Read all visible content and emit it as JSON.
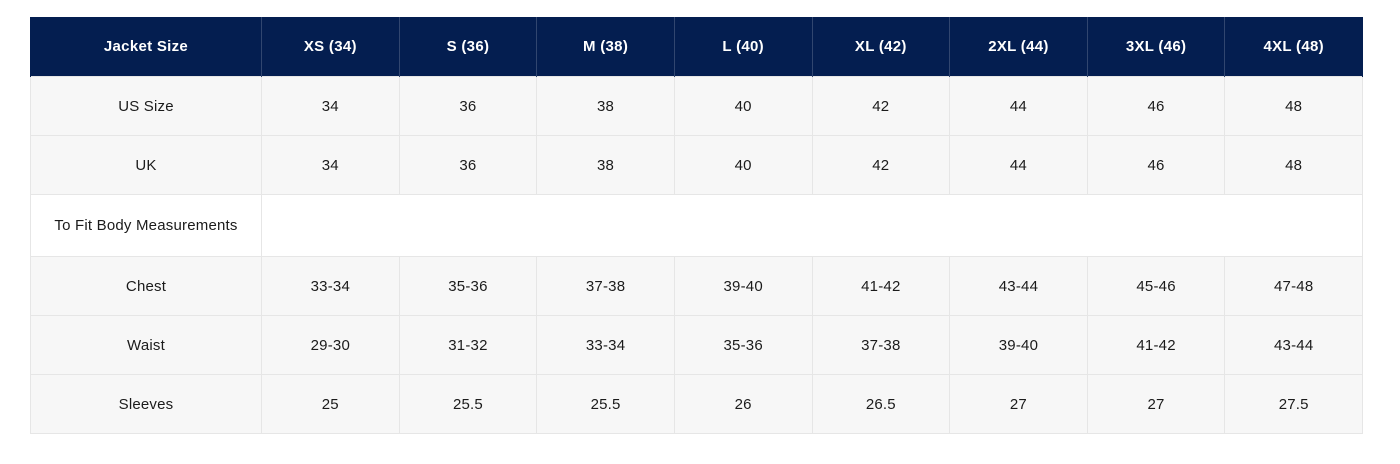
{
  "chart_data": {
    "type": "table",
    "columns": [
      "Jacket Size",
      "XS (34)",
      "S (36)",
      "M (38)",
      "L (40)",
      "XL (42)",
      "2XL (44)",
      "3XL (46)",
      "4XL (48)"
    ],
    "rows": [
      {
        "label": "US Size",
        "kind": "data",
        "values": [
          "34",
          "36",
          "38",
          "40",
          "42",
          "44",
          "46",
          "48"
        ]
      },
      {
        "label": "UK",
        "kind": "data",
        "values": [
          "34",
          "36",
          "38",
          "40",
          "42",
          "44",
          "46",
          "48"
        ]
      },
      {
        "label": "To Fit Body Measurements",
        "kind": "section",
        "values": []
      },
      {
        "label": "Chest",
        "kind": "data",
        "values": [
          "33-34",
          "35-36",
          "37-38",
          "39-40",
          "41-42",
          "43-44",
          "45-46",
          "47-48"
        ]
      },
      {
        "label": "Waist",
        "kind": "data",
        "values": [
          "29-30",
          "31-32",
          "33-34",
          "35-36",
          "37-38",
          "39-40",
          "41-42",
          "43-44"
        ]
      },
      {
        "label": "Sleeves",
        "kind": "data",
        "values": [
          "25",
          "25.5",
          "25.5",
          "26",
          "26.5",
          "27",
          "27",
          "27.5"
        ]
      }
    ]
  },
  "colors": {
    "header_bg": "#041e50",
    "header_text": "#ffffff",
    "row_bg": "#f7f7f7",
    "section_bg": "#ffffff",
    "border": "#e6e6e6",
    "text": "#1b1b1b",
    "page_bg": "#ffffff"
  }
}
